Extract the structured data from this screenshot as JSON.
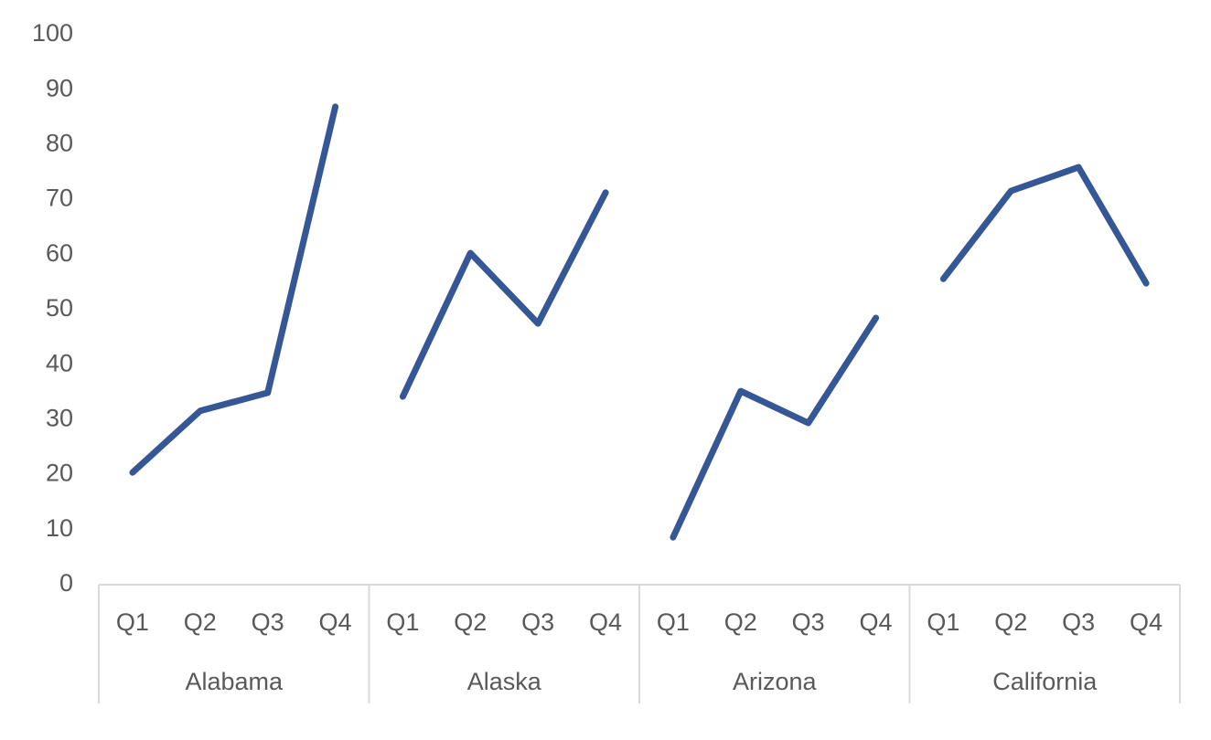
{
  "chart_data": {
    "type": "line",
    "groups": [
      {
        "label": "Alabama",
        "categories": [
          "Q1",
          "Q2",
          "Q3",
          "Q4"
        ],
        "values": [
          20.4,
          31.6,
          34.9,
          86.9
        ]
      },
      {
        "label": "Alaska",
        "categories": [
          "Q1",
          "Q2",
          "Q3",
          "Q4"
        ],
        "values": [
          34.2,
          60.3,
          47.5,
          71.3
        ]
      },
      {
        "label": "Arizona",
        "categories": [
          "Q1",
          "Q2",
          "Q3",
          "Q4"
        ],
        "values": [
          8.6,
          35.2,
          29.4,
          48.5
        ]
      },
      {
        "label": "California",
        "categories": [
          "Q1",
          "Q2",
          "Q3",
          "Q4"
        ],
        "values": [
          55.6,
          71.6,
          75.9,
          54.8
        ]
      }
    ],
    "color": "#355796",
    "ylim": [
      0,
      100
    ],
    "yticks": [
      0,
      10,
      20,
      30,
      40,
      50,
      60,
      70,
      80,
      90,
      100
    ],
    "grid": false
  }
}
